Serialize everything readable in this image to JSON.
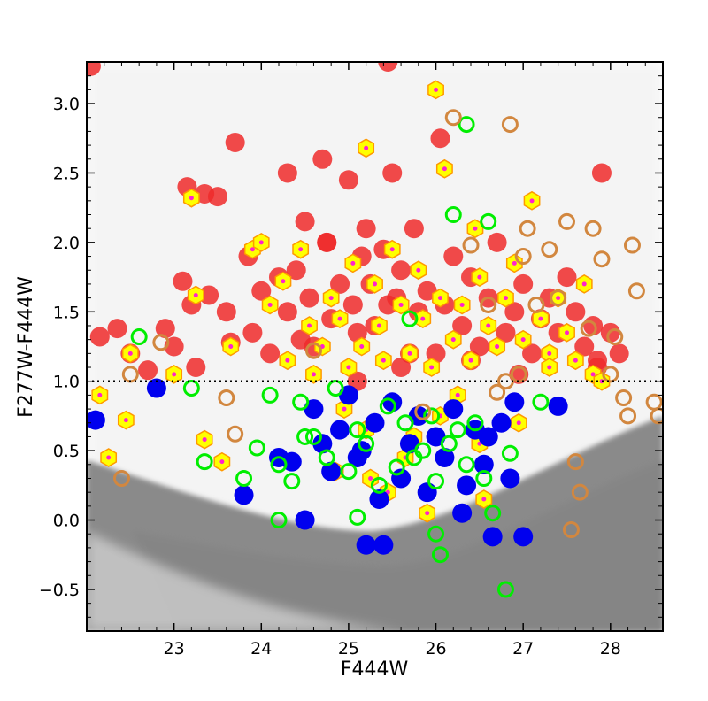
{
  "chart_data": {
    "type": "scatter",
    "title": "",
    "xlabel": "F444W",
    "ylabel": "F277W-F444W",
    "xlim": [
      22.0,
      28.6
    ],
    "ylim": [
      -0.8,
      3.3
    ],
    "xticks": [
      "23",
      "24",
      "25",
      "26",
      "27",
      "28"
    ],
    "yticks": [
      "−0.5",
      "0.0",
      "0.5",
      "1.0",
      "1.5",
      "2.0",
      "2.5",
      "3.0"
    ],
    "threshold_line": {
      "y": 1.0,
      "style": "dotted",
      "color": "#000000"
    },
    "background": {
      "description_only": false,
      "light_cloud_color": "#e2e2e2",
      "dense_locus_color": "#8a8a8a",
      "locus": [
        [
          22.2,
          0.35
        ],
        [
          23.5,
          0.15
        ],
        [
          24.5,
          0.05
        ],
        [
          25.5,
          0.1
        ],
        [
          26.5,
          0.25
        ],
        [
          27.5,
          0.45
        ],
        [
          28.6,
          0.6
        ]
      ]
    },
    "series": [
      {
        "key": "red",
        "style": "filled-circle",
        "color": "#ee2a2a",
        "x": [
          22.05,
          22.15,
          22.35,
          22.5,
          22.7,
          22.9,
          23.0,
          23.1,
          23.2,
          23.25,
          23.4,
          23.5,
          23.6,
          23.65,
          23.7,
          23.85,
          23.9,
          24.0,
          24.1,
          24.2,
          24.3,
          24.4,
          24.45,
          24.5,
          24.55,
          24.6,
          24.7,
          24.75,
          24.8,
          24.9,
          25.0,
          25.05,
          25.1,
          25.15,
          25.2,
          25.25,
          25.3,
          25.4,
          25.45,
          25.5,
          25.55,
          25.6,
          25.7,
          25.75,
          25.8,
          25.9,
          26.0,
          26.05,
          26.1,
          26.2,
          26.3,
          26.4,
          26.5,
          26.6,
          26.7,
          26.8,
          26.9,
          27.0,
          27.1,
          27.2,
          27.3,
          27.4,
          27.5,
          27.6,
          27.7,
          27.8,
          27.85,
          27.9,
          28.0,
          28.1,
          25.45,
          24.3,
          24.75,
          25.1,
          25.6,
          26.4,
          26.95,
          27.85,
          23.35,
          23.15
        ],
        "y": [
          3.27,
          1.32,
          1.38,
          1.2,
          1.08,
          1.38,
          1.25,
          1.72,
          1.55,
          1.1,
          1.62,
          2.33,
          1.5,
          1.28,
          2.72,
          1.9,
          1.35,
          1.65,
          1.2,
          1.75,
          1.5,
          1.8,
          1.3,
          2.15,
          1.6,
          1.25,
          2.6,
          2.0,
          1.45,
          1.7,
          2.45,
          1.55,
          1.35,
          1.9,
          2.1,
          1.7,
          1.4,
          1.95,
          1.55,
          2.5,
          1.6,
          1.8,
          1.2,
          2.1,
          1.5,
          1.65,
          1.2,
          2.75,
          1.55,
          1.9,
          1.4,
          1.75,
          1.25,
          1.6,
          2.0,
          1.35,
          1.5,
          1.7,
          1.2,
          1.45,
          1.6,
          1.35,
          1.75,
          1.5,
          1.25,
          1.4,
          1.15,
          2.5,
          1.35,
          1.2,
          3.3,
          2.5,
          2.0,
          1.0,
          1.1,
          1.15,
          1.05,
          1.1,
          2.35,
          2.4
        ]
      },
      {
        "key": "yellow",
        "style": "hexagon-with-magenta-dot",
        "color": "#ffff00",
        "x": [
          22.15,
          22.25,
          22.45,
          22.5,
          23.0,
          23.2,
          23.25,
          23.35,
          23.55,
          23.65,
          23.9,
          24.0,
          24.1,
          24.25,
          24.3,
          24.45,
          24.55,
          24.6,
          24.7,
          24.8,
          24.9,
          25.0,
          25.05,
          25.15,
          25.2,
          25.3,
          25.35,
          25.4,
          25.5,
          25.6,
          25.7,
          25.8,
          25.85,
          25.95,
          26.0,
          26.05,
          26.1,
          26.2,
          26.3,
          26.4,
          26.45,
          26.5,
          26.6,
          26.7,
          26.8,
          26.9,
          27.0,
          27.1,
          27.2,
          27.3,
          27.4,
          27.5,
          27.6,
          27.7,
          27.8,
          27.9,
          25.2,
          25.45,
          25.9,
          26.05,
          26.5,
          26.55,
          24.85,
          24.95,
          25.65,
          25.25,
          25.75,
          26.25,
          26.95,
          27.3
        ],
        "y": [
          0.9,
          0.45,
          0.72,
          1.2,
          1.05,
          2.32,
          1.62,
          0.58,
          0.42,
          1.25,
          1.95,
          2.0,
          1.55,
          1.72,
          1.15,
          1.95,
          1.4,
          1.05,
          1.25,
          1.6,
          1.45,
          1.1,
          1.85,
          1.25,
          2.68,
          1.7,
          1.4,
          1.15,
          1.95,
          1.55,
          1.2,
          1.8,
          1.45,
          1.1,
          3.1,
          1.6,
          2.53,
          1.3,
          1.55,
          1.15,
          2.1,
          1.75,
          1.4,
          1.25,
          1.6,
          1.85,
          1.3,
          2.3,
          1.45,
          1.2,
          1.6,
          1.35,
          1.15,
          1.7,
          1.05,
          1.0,
          0.65,
          0.2,
          0.05,
          0.75,
          0.55,
          0.15,
          0.35,
          0.8,
          0.45,
          0.3,
          0.6,
          0.9,
          0.7,
          1.1
        ]
      },
      {
        "key": "blue",
        "style": "filled-circle",
        "color": "#0000ee",
        "x": [
          22.1,
          22.8,
          23.8,
          24.2,
          24.35,
          24.5,
          24.6,
          24.7,
          24.8,
          24.9,
          25.0,
          25.1,
          25.2,
          25.3,
          25.4,
          25.5,
          25.6,
          25.7,
          25.8,
          25.9,
          26.0,
          26.1,
          26.2,
          26.3,
          26.35,
          26.45,
          26.55,
          26.65,
          26.75,
          26.85,
          27.0,
          27.4,
          25.15,
          25.35,
          26.6,
          26.9
        ],
        "y": [
          0.72,
          0.95,
          0.18,
          0.45,
          0.42,
          0.0,
          0.8,
          0.55,
          0.35,
          0.65,
          0.9,
          0.45,
          -0.18,
          0.7,
          -0.18,
          0.85,
          0.3,
          0.55,
          0.75,
          0.2,
          0.6,
          0.45,
          0.8,
          0.05,
          0.25,
          0.65,
          0.4,
          -0.12,
          0.7,
          0.3,
          -0.12,
          0.82,
          0.5,
          0.15,
          0.6,
          0.85
        ]
      },
      {
        "key": "green",
        "style": "open-circle",
        "color": "#00ee00",
        "x": [
          22.6,
          23.2,
          23.35,
          23.8,
          23.95,
          24.1,
          24.2,
          24.35,
          24.45,
          24.6,
          24.75,
          24.85,
          25.0,
          25.1,
          25.2,
          25.35,
          25.45,
          25.55,
          25.65,
          25.75,
          25.85,
          25.95,
          26.0,
          26.05,
          26.15,
          26.25,
          26.35,
          26.45,
          26.55,
          26.65,
          26.8,
          26.85,
          27.2,
          25.7,
          26.0,
          26.6,
          24.2,
          25.1,
          26.35,
          24.5,
          26.2
        ],
        "y": [
          1.32,
          0.95,
          0.42,
          0.3,
          0.52,
          0.9,
          0.4,
          0.28,
          0.85,
          0.6,
          0.45,
          0.95,
          0.35,
          0.65,
          0.55,
          0.25,
          0.82,
          0.38,
          0.7,
          0.45,
          0.5,
          0.75,
          -0.1,
          -0.25,
          0.55,
          0.65,
          0.4,
          0.7,
          0.3,
          0.05,
          -0.5,
          0.48,
          0.85,
          1.45,
          0.28,
          2.15,
          0.0,
          0.02,
          2.85,
          0.6,
          2.2
        ]
      },
      {
        "key": "orange",
        "style": "open-circle",
        "color": "#d2873f",
        "x": [
          22.4,
          22.5,
          22.85,
          23.6,
          23.7,
          24.6,
          25.85,
          26.2,
          26.4,
          26.6,
          26.7,
          26.85,
          26.95,
          27.05,
          27.15,
          27.3,
          27.4,
          27.5,
          27.6,
          27.65,
          27.75,
          27.8,
          27.9,
          28.0,
          28.05,
          28.15,
          28.2,
          28.25,
          28.3,
          28.5,
          28.55,
          27.55,
          26.8,
          27.0
        ],
        "y": [
          0.3,
          1.05,
          1.28,
          0.88,
          0.62,
          1.22,
          0.78,
          2.9,
          1.98,
          1.55,
          0.92,
          2.85,
          1.05,
          2.1,
          1.55,
          1.95,
          1.6,
          2.15,
          0.42,
          0.2,
          1.38,
          2.1,
          1.88,
          1.05,
          1.32,
          0.88,
          0.75,
          1.98,
          1.65,
          0.85,
          0.75,
          -0.07,
          1.0,
          1.9
        ]
      }
    ]
  }
}
